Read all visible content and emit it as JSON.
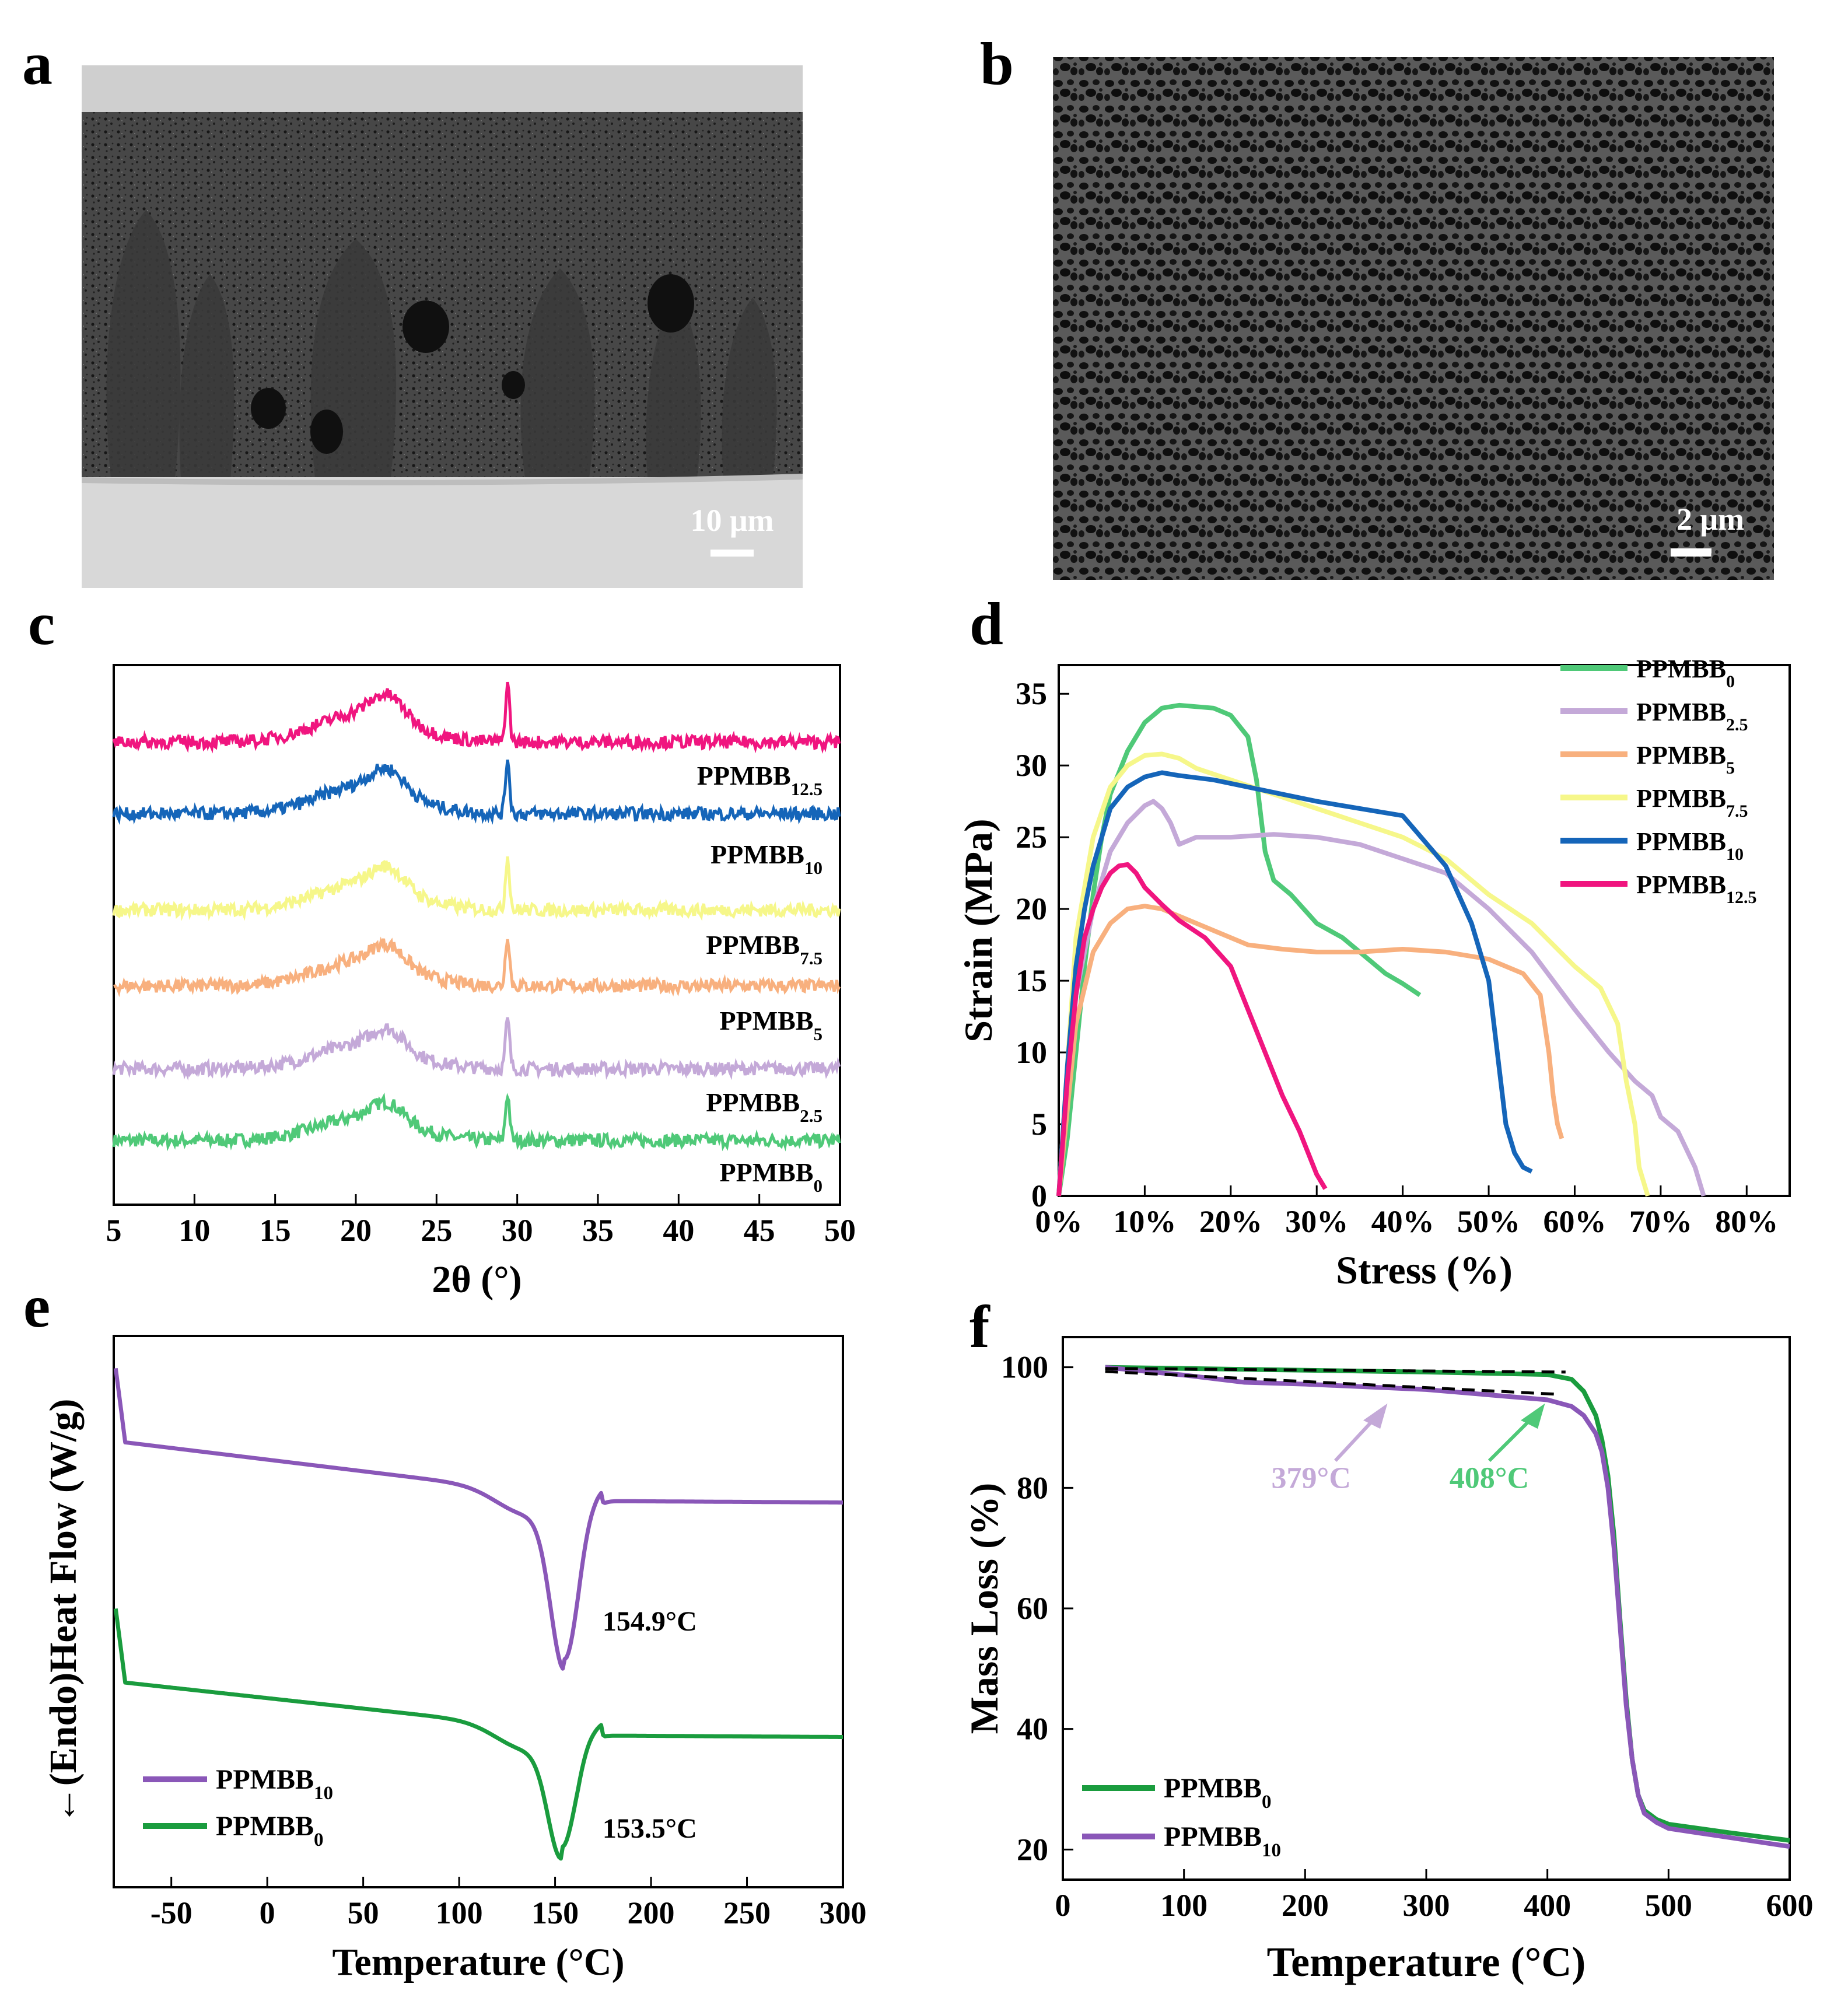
{
  "panels": {
    "a": {
      "letter": "a",
      "scale_bar": "10 μm"
    },
    "b": {
      "letter": "b",
      "scale_bar": "2 μm"
    },
    "c": {
      "letter": "c"
    },
    "d": {
      "letter": "d"
    },
    "e": {
      "letter": "e"
    },
    "f": {
      "letter": "f"
    }
  },
  "chart_data": [
    {
      "id": "c",
      "type": "line",
      "title": "",
      "xlabel": "2θ (°)",
      "ylabel": "",
      "xlim": [
        5,
        50
      ],
      "xticks": [
        "5",
        "10",
        "15",
        "20",
        "25",
        "30",
        "35",
        "40",
        "45",
        "50"
      ],
      "series": [
        {
          "name": "PPMBB0",
          "label_main": "PPMBB",
          "label_sub": "0",
          "color": "#4fc978",
          "offset_rank": 0,
          "peak_height": 1.0
        },
        {
          "name": "PPMBB2.5",
          "label_main": "PPMBB",
          "label_sub": "2.5",
          "color": "#c4a9d8",
          "offset_rank": 1,
          "peak_height": 1.05
        },
        {
          "name": "PPMBB5",
          "label_main": "PPMBB",
          "label_sub": "5",
          "color": "#f8b07e",
          "offset_rank": 2,
          "peak_height": 1.1
        },
        {
          "name": "PPMBB7.5",
          "label_main": "PPMBB",
          "label_sub": "7.5",
          "color": "#f6f78a",
          "offset_rank": 3,
          "peak_height": 1.15
        },
        {
          "name": "PPMBB10",
          "label_main": "PPMBB",
          "label_sub": "10",
          "color": "#1565b9",
          "offset_rank": 4,
          "peak_height": 1.2
        },
        {
          "name": "PPMBB12.5",
          "label_main": "PPMBB",
          "label_sub": "12.5",
          "color": "#f0157f",
          "offset_rank": 5,
          "peak_height": 1.25
        }
      ],
      "peaks": [
        21.5,
        29.4
      ]
    },
    {
      "id": "d",
      "type": "line",
      "xlabel": "Stress (%)",
      "ylabel": "Strain (MPa)",
      "xlim": [
        0,
        85
      ],
      "ylim": [
        0,
        37
      ],
      "xticks": [
        "0%",
        "10%",
        "20%",
        "30%",
        "40%",
        "50%",
        "60%",
        "70%",
        "80%"
      ],
      "yticks": [
        "0",
        "5",
        "10",
        "15",
        "20",
        "25",
        "30",
        "35"
      ],
      "legend_position": "top-right",
      "series": [
        {
          "name": "PPMBB0",
          "label_main": "PPMBB",
          "label_sub": "0",
          "color": "#4fc978",
          "x": [
            0,
            1,
            2,
            3,
            4,
            5,
            6,
            8,
            10,
            12,
            14,
            16,
            18,
            20,
            22,
            23,
            24,
            25,
            27,
            30,
            33,
            36,
            38,
            40,
            42
          ],
          "y": [
            0,
            4,
            10,
            16,
            21,
            25,
            28,
            31,
            33,
            34,
            34.2,
            34.1,
            34,
            33.5,
            32,
            29,
            24,
            22,
            21,
            19,
            18,
            16.5,
            15.5,
            14.8,
            14
          ]
        },
        {
          "name": "PPMBB2.5",
          "label_main": "PPMBB",
          "label_sub": "2.5",
          "color": "#c4a9d8",
          "x": [
            0,
            1,
            2,
            4,
            6,
            8,
            10,
            11,
            12,
            13,
            14,
            16,
            20,
            25,
            30,
            35,
            40,
            45,
            50,
            55,
            60,
            64,
            67,
            69,
            70,
            72,
            74,
            75
          ],
          "y": [
            0,
            7,
            14,
            20,
            24,
            26,
            27.2,
            27.5,
            27,
            26,
            24.5,
            25,
            25,
            25.2,
            25,
            24.5,
            23.5,
            22.5,
            20,
            17,
            13,
            10,
            8,
            7,
            5.5,
            4.5,
            2,
            0
          ]
        },
        {
          "name": "PPMBB5",
          "label_main": "PPMBB",
          "label_sub": "5",
          "color": "#f8b07e",
          "x": [
            0,
            1,
            2,
            4,
            6,
            8,
            10,
            12,
            14,
            18,
            22,
            26,
            30,
            35,
            40,
            45,
            50,
            54,
            56,
            57,
            57.5,
            58,
            58.5
          ],
          "y": [
            0,
            6,
            12,
            17,
            19,
            20,
            20.2,
            20,
            19.5,
            18.5,
            17.5,
            17.2,
            17,
            17,
            17.2,
            17,
            16.5,
            15.5,
            14,
            10,
            7,
            5,
            4
          ]
        },
        {
          "name": "PPMBB7.5",
          "label_main": "PPMBB",
          "label_sub": "7.5",
          "color": "#f6f78a",
          "x": [
            0,
            1,
            2,
            4,
            6,
            8,
            10,
            12,
            14,
            16,
            20,
            25,
            30,
            35,
            40,
            45,
            50,
            55,
            60,
            63,
            65,
            66,
            67,
            67.5,
            68,
            68.5
          ],
          "y": [
            0,
            9,
            18,
            25,
            28.5,
            30,
            30.7,
            30.8,
            30.5,
            29.8,
            29,
            28,
            27,
            26,
            25,
            23.5,
            21,
            19,
            16,
            14.5,
            12,
            8,
            5,
            2,
            1,
            0
          ]
        },
        {
          "name": "PPMBB10",
          "label_main": "PPMBB",
          "label_sub": "10",
          "color": "#1565b9",
          "x": [
            0,
            1,
            2,
            3,
            4,
            5,
            6,
            8,
            10,
            12,
            14,
            18,
            22,
            26,
            30,
            35,
            40,
            45,
            48,
            50,
            51,
            52,
            53,
            54,
            55
          ],
          "y": [
            0,
            9,
            16,
            20,
            23,
            25,
            27,
            28.5,
            29.2,
            29.5,
            29.3,
            29,
            28.5,
            28,
            27.5,
            27,
            26.5,
            23,
            19,
            15,
            10,
            5,
            3,
            2,
            1.7
          ]
        },
        {
          "name": "PPMBB12.5",
          "label_main": "PPMBB",
          "label_sub": "12.5",
          "color": "#f0157f",
          "x": [
            0,
            1,
            2,
            3,
            4,
            5,
            6,
            7,
            8,
            9,
            10,
            12,
            14,
            17,
            20,
            22,
            24,
            26,
            28,
            29,
            30,
            31
          ],
          "y": [
            0,
            8,
            14,
            18,
            20,
            21.5,
            22.5,
            23,
            23.1,
            22.5,
            21.5,
            20.3,
            19.2,
            18,
            16,
            13,
            10,
            7,
            4.5,
            3,
            1.5,
            0.5
          ]
        }
      ]
    },
    {
      "id": "e",
      "type": "line",
      "xlabel": "Temperature (°C)",
      "ylabel": "←(Endo)Heat Flow (W/g)",
      "xlim": [
        -80,
        300
      ],
      "xticks": [
        "-50",
        "0",
        "50",
        "100",
        "150",
        "200",
        "250",
        "300"
      ],
      "legend_position": "bottom-left",
      "series": [
        {
          "name": "PPMBB10",
          "label_main": "PPMBB",
          "label_sub": "10",
          "color": "#8a57b8",
          "peak_temp": 154.9
        },
        {
          "name": "PPMBB0",
          "label_main": "PPMBB",
          "label_sub": "0",
          "color": "#1a9c3e",
          "peak_temp": 153.5
        }
      ],
      "annotations": [
        "154.9°C",
        "153.5°C"
      ]
    },
    {
      "id": "f",
      "type": "line",
      "xlabel": "Temperature (°C)",
      "ylabel": "Mass Loss (%)",
      "xlim": [
        0,
        600
      ],
      "ylim": [
        15,
        105
      ],
      "xticks": [
        "0",
        "100",
        "200",
        "300",
        "400",
        "500",
        "600"
      ],
      "yticks": [
        "20",
        "40",
        "60",
        "80",
        "100"
      ],
      "legend_position": "bottom-left",
      "series": [
        {
          "name": "PPMBB0",
          "label_main": "PPMBB",
          "label_sub": "0",
          "color": "#1a9c3e",
          "x": [
            35,
            100,
            200,
            300,
            400,
            420,
            430,
            440,
            445,
            450,
            455,
            460,
            465,
            470,
            475,
            480,
            490,
            500,
            550,
            600
          ],
          "y": [
            100,
            99.8,
            99.5,
            99.2,
            98.8,
            98,
            96,
            92,
            88,
            82,
            72,
            58,
            45,
            35,
            29,
            26.5,
            25,
            24.2,
            22.8,
            21.5
          ]
        },
        {
          "name": "PPMBB10",
          "label_main": "PPMBB",
          "label_sub": "10",
          "color": "#8a57b8",
          "x": [
            35,
            100,
            150,
            200,
            300,
            400,
            420,
            430,
            440,
            445,
            450,
            455,
            460,
            465,
            470,
            475,
            480,
            490,
            500,
            550,
            600
          ],
          "y": [
            100,
            98.7,
            97.5,
            97.2,
            96.3,
            94.6,
            93.5,
            92,
            89,
            86,
            80,
            70,
            57,
            44,
            35,
            29,
            26,
            24.5,
            23.5,
            22,
            20.5
          ]
        }
      ],
      "annotations": [
        "379°C",
        "408°C"
      ],
      "annotation_colors": [
        "#c4a9d8",
        "#4fc978"
      ]
    }
  ]
}
